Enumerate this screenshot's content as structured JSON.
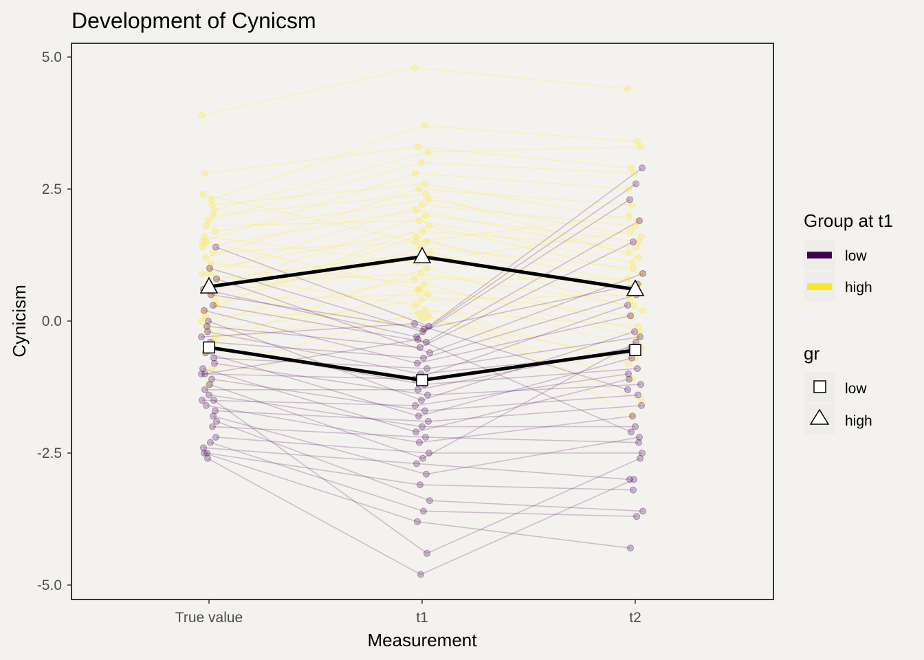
{
  "chart_data": {
    "type": "line",
    "title": "Development of Cynicsm",
    "xlabel": "Measurement",
    "ylabel": "Cynicism",
    "categories": [
      "True value",
      "t1",
      "t2"
    ],
    "ylim": [
      -5.3,
      5.3
    ],
    "yticks": [
      5.0,
      2.5,
      0.0,
      -2.5,
      -5.0
    ],
    "ytick_labels": [
      "5.0",
      "2.5",
      "0.0",
      "-2.5",
      "-5.0"
    ],
    "grid": false,
    "legend_position": "right",
    "colors": {
      "low": "#440154",
      "high": "#fde725",
      "mean_line": "#000000",
      "panel": "#f4f2ef",
      "border": "#1f3868"
    },
    "color_legend": {
      "title": "Group at t1",
      "entries": [
        "low",
        "high"
      ]
    },
    "shape_legend": {
      "title": "gr",
      "entries": [
        {
          "label": "low",
          "shape": "square"
        },
        {
          "label": "high",
          "shape": "triangle"
        }
      ]
    },
    "series": [
      {
        "name": "low",
        "values": [
          -0.5,
          -1.12,
          -0.55
        ]
      },
      {
        "name": "high",
        "values": [
          0.65,
          1.22,
          0.6
        ]
      }
    ],
    "individual_trajectories": [
      {
        "group": "high",
        "values": [
          3.9,
          4.8,
          4.4
        ]
      },
      {
        "group": "high",
        "values": [
          2.3,
          3.7,
          3.4
        ]
      },
      {
        "group": "high",
        "values": [
          2.8,
          3.3,
          2.9
        ]
      },
      {
        "group": "high",
        "values": [
          2.1,
          3.2,
          3.3
        ]
      },
      {
        "group": "high",
        "values": [
          1.9,
          3.0,
          2.8
        ]
      },
      {
        "group": "high",
        "values": [
          1.5,
          2.8,
          2.5
        ]
      },
      {
        "group": "high",
        "values": [
          2.2,
          2.6,
          1.9
        ]
      },
      {
        "group": "high",
        "values": [
          1.2,
          2.5,
          2.2
        ]
      },
      {
        "group": "high",
        "values": [
          1.7,
          2.3,
          1.6
        ]
      },
      {
        "group": "high",
        "values": [
          0.9,
          2.2,
          1.8
        ]
      },
      {
        "group": "high",
        "values": [
          1.4,
          2.1,
          1.3
        ]
      },
      {
        "group": "high",
        "values": [
          0.6,
          2.0,
          1.5
        ]
      },
      {
        "group": "high",
        "values": [
          1.8,
          1.9,
          1.1
        ]
      },
      {
        "group": "high",
        "values": [
          0.3,
          1.8,
          0.9
        ]
      },
      {
        "group": "high",
        "values": [
          1.0,
          1.7,
          1.4
        ]
      },
      {
        "group": "high",
        "values": [
          0.2,
          1.6,
          0.4
        ]
      },
      {
        "group": "high",
        "values": [
          1.3,
          1.5,
          0.7
        ]
      },
      {
        "group": "high",
        "values": [
          -0.1,
          1.4,
          1.0
        ]
      },
      {
        "group": "high",
        "values": [
          0.8,
          1.3,
          0.2
        ]
      },
      {
        "group": "high",
        "values": [
          0.5,
          1.2,
          0.6
        ]
      },
      {
        "group": "high",
        "values": [
          1.6,
          1.1,
          1.7
        ]
      },
      {
        "group": "high",
        "values": [
          -0.4,
          1.0,
          -0.2
        ]
      },
      {
        "group": "high",
        "values": [
          0.7,
          0.9,
          0.3
        ]
      },
      {
        "group": "high",
        "values": [
          0.0,
          0.8,
          0.8
        ]
      },
      {
        "group": "high",
        "values": [
          1.1,
          0.7,
          -0.3
        ]
      },
      {
        "group": "high",
        "values": [
          -0.6,
          0.6,
          0.1
        ]
      },
      {
        "group": "high",
        "values": [
          0.4,
          0.5,
          -0.5
        ]
      },
      {
        "group": "high",
        "values": [
          -0.2,
          0.4,
          0.5
        ]
      },
      {
        "group": "high",
        "values": [
          0.9,
          0.3,
          -0.8
        ]
      },
      {
        "group": "high",
        "values": [
          -0.9,
          0.2,
          -0.1
        ]
      },
      {
        "group": "high",
        "values": [
          0.1,
          0.15,
          -1.1
        ]
      },
      {
        "group": "high",
        "values": [
          -0.3,
          0.1,
          -1.5
        ]
      },
      {
        "group": "high",
        "values": [
          -1.2,
          0.05,
          -0.7
        ]
      },
      {
        "group": "high",
        "values": [
          2.4,
          1.5,
          2.0
        ]
      },
      {
        "group": "high",
        "values": [
          2.0,
          2.4,
          1.2
        ]
      },
      {
        "group": "high",
        "values": [
          1.5,
          0.6,
          -1.8
        ]
      },
      {
        "group": "low",
        "values": [
          1.4,
          -0.1,
          2.9
        ]
      },
      {
        "group": "low",
        "values": [
          1.0,
          -0.2,
          2.6
        ]
      },
      {
        "group": "low",
        "values": [
          0.6,
          -0.3,
          2.3
        ]
      },
      {
        "group": "low",
        "values": [
          0.3,
          -0.4,
          1.9
        ]
      },
      {
        "group": "low",
        "values": [
          -0.1,
          -0.5,
          1.5
        ]
      },
      {
        "group": "low",
        "values": [
          0.8,
          -0.6,
          0.9
        ]
      },
      {
        "group": "low",
        "values": [
          -0.4,
          -0.7,
          0.5
        ]
      },
      {
        "group": "low",
        "values": [
          0.2,
          -0.8,
          0.1
        ]
      },
      {
        "group": "low",
        "values": [
          -0.7,
          -0.9,
          -0.3
        ]
      },
      {
        "group": "low",
        "values": [
          -0.2,
          -1.0,
          -0.6
        ]
      },
      {
        "group": "low",
        "values": [
          -1.0,
          -1.1,
          0.3
        ]
      },
      {
        "group": "low",
        "values": [
          -0.5,
          -1.2,
          -0.9
        ]
      },
      {
        "group": "low",
        "values": [
          -1.3,
          -1.3,
          -0.5
        ]
      },
      {
        "group": "low",
        "values": [
          -0.8,
          -1.4,
          -1.2
        ]
      },
      {
        "group": "low",
        "values": [
          0.0,
          -1.5,
          -0.2
        ]
      },
      {
        "group": "low",
        "values": [
          -1.5,
          -1.6,
          -1.0
        ]
      },
      {
        "group": "low",
        "values": [
          -1.1,
          -1.7,
          -1.4
        ]
      },
      {
        "group": "low",
        "values": [
          -0.6,
          -1.8,
          -0.7
        ]
      },
      {
        "group": "low",
        "values": [
          -1.7,
          -1.9,
          -1.6
        ]
      },
      {
        "group": "low",
        "values": [
          -1.4,
          -2.0,
          -2.0
        ]
      },
      {
        "group": "low",
        "values": [
          -0.9,
          -2.1,
          -1.1
        ]
      },
      {
        "group": "low",
        "values": [
          -2.0,
          -2.2,
          -2.3
        ]
      },
      {
        "group": "low",
        "values": [
          -1.6,
          -2.3,
          -1.8
        ]
      },
      {
        "group": "low",
        "values": [
          -2.2,
          -2.5,
          -2.5
        ]
      },
      {
        "group": "low",
        "values": [
          -1.2,
          -2.6,
          -0.4
        ]
      },
      {
        "group": "low",
        "values": [
          -2.4,
          -2.7,
          -3.0
        ]
      },
      {
        "group": "low",
        "values": [
          -1.8,
          -2.9,
          -2.2
        ]
      },
      {
        "group": "low",
        "values": [
          -2.5,
          -3.1,
          -3.2
        ]
      },
      {
        "group": "low",
        "values": [
          -1.9,
          -3.4,
          -3.6
        ]
      },
      {
        "group": "low",
        "values": [
          -2.3,
          -3.6,
          -3.7
        ]
      },
      {
        "group": "low",
        "values": [
          -2.5,
          -3.8,
          -4.3
        ]
      },
      {
        "group": "low",
        "values": [
          -1.5,
          -4.4,
          -2.6
        ]
      },
      {
        "group": "low",
        "values": [
          -2.6,
          -4.8,
          -3.0
        ]
      },
      {
        "group": "low",
        "values": [
          -0.3,
          -0.05,
          -1.3
        ]
      },
      {
        "group": "low",
        "values": [
          0.5,
          -0.15,
          0.7
        ]
      },
      {
        "group": "low",
        "values": [
          -1.0,
          -0.35,
          -2.1
        ]
      }
    ]
  }
}
